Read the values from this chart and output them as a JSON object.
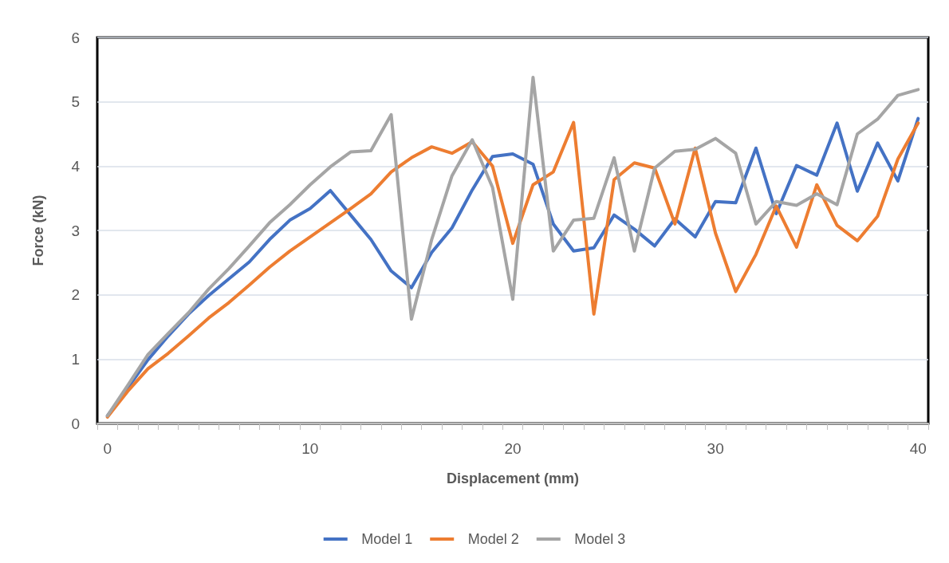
{
  "chart_data": {
    "type": "line",
    "xlabel": "Displacement (mm)",
    "ylabel": "Force (kN)",
    "categories": [
      "0",
      null,
      null,
      null,
      null,
      null,
      null,
      null,
      null,
      null,
      "10",
      null,
      null,
      null,
      null,
      null,
      null,
      null,
      null,
      null,
      "20",
      null,
      null,
      null,
      null,
      null,
      null,
      null,
      null,
      null,
      "30",
      null,
      null,
      null,
      null,
      null,
      null,
      null,
      null,
      null,
      "40"
    ],
    "series": [
      {
        "name": "Model 1",
        "color": "#4472c4",
        "values": [
          0.12,
          0.55,
          0.99,
          1.36,
          1.7,
          1.99,
          2.25,
          2.51,
          2.86,
          3.16,
          3.34,
          3.62,
          3.24,
          2.86,
          2.37,
          2.11,
          2.66,
          3.04,
          3.63,
          4.15,
          4.19,
          4.03,
          3.1,
          2.68,
          2.73,
          3.24,
          3.02,
          2.76,
          3.18,
          2.9,
          3.45,
          3.43,
          4.28,
          3.26,
          4.01,
          3.86,
          4.67,
          3.61,
          4.36,
          3.77,
          4.74
        ]
      },
      {
        "name": "Model 2",
        "color": "#ed7d31",
        "values": [
          0.1,
          0.5,
          0.85,
          1.09,
          1.36,
          1.64,
          1.88,
          2.15,
          2.43,
          2.68,
          2.9,
          3.12,
          3.34,
          3.57,
          3.91,
          4.13,
          4.3,
          4.2,
          4.38,
          4.0,
          2.8,
          3.71,
          3.91,
          4.68,
          1.7,
          3.79,
          4.05,
          3.97,
          3.1,
          4.28,
          2.96,
          2.05,
          2.63,
          3.38,
          2.74,
          3.71,
          3.08,
          2.84,
          3.22,
          4.11,
          4.67
        ]
      },
      {
        "name": "Model 3",
        "color": "#a5a5a5",
        "values": [
          0.12,
          0.59,
          1.07,
          1.4,
          1.72,
          2.09,
          2.41,
          2.76,
          3.12,
          3.4,
          3.71,
          3.99,
          4.22,
          4.24,
          4.8,
          1.62,
          2.86,
          3.85,
          4.41,
          3.67,
          1.93,
          5.38,
          2.68,
          3.16,
          3.19,
          4.13,
          2.68,
          3.97,
          4.23,
          4.26,
          4.43,
          4.2,
          3.1,
          3.45,
          3.39,
          3.57,
          3.4,
          4.5,
          4.73,
          5.1,
          5.19
        ]
      }
    ],
    "ylim": [
      0,
      6
    ],
    "yticks": [
      0,
      1,
      2,
      3,
      4,
      5,
      6
    ],
    "grid": "y",
    "legend": "bottom",
    "marker": "none",
    "line_style": "solid"
  }
}
